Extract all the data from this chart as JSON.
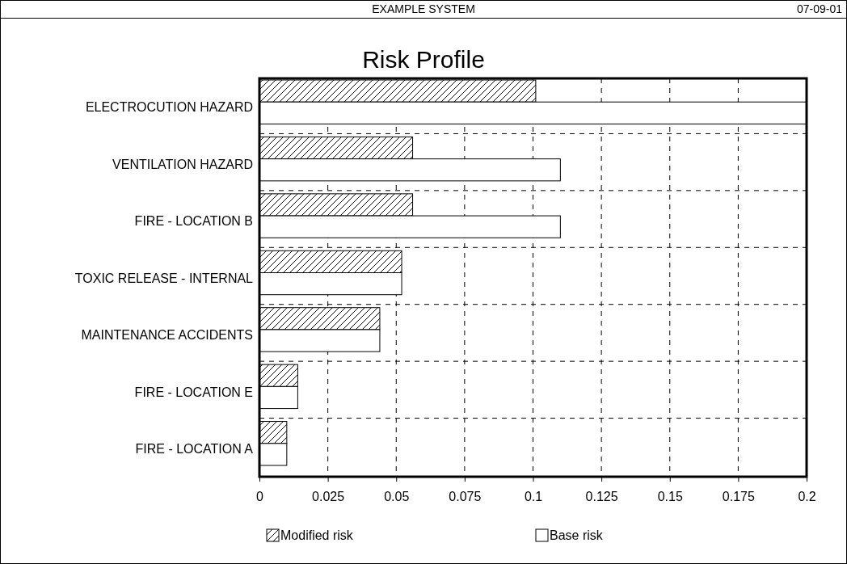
{
  "chart_data": {
    "type": "bar",
    "orientation": "horizontal",
    "title": "Risk Profile",
    "annotations": [
      "EXAMPLE SYSTEM",
      "07-09-01"
    ],
    "categories": [
      "ELECTROCUTION HAZARD",
      "VENTILATION HAZARD",
      "FIRE - LOCATION B",
      "TOXIC RELEASE - INTERNAL",
      "MAINTENANCE ACCIDENTS",
      "FIRE - LOCATION E",
      "FIRE - LOCATION A"
    ],
    "series": [
      {
        "name": "Modified risk",
        "color": "#000000",
        "values": [
          0.101,
          0.056,
          0.056,
          0.052,
          0.044,
          0.014,
          0.01
        ]
      },
      {
        "name": "Base risk",
        "color": "#ffffff",
        "values": [
          0.2,
          0.11,
          0.11,
          0.052,
          0.044,
          0.014,
          0.01
        ]
      }
    ],
    "xlim": [
      0,
      0.2
    ],
    "xticks": [
      0,
      0.025,
      0.05,
      0.075,
      0.1,
      0.125,
      0.15,
      0.175,
      0.2
    ],
    "grid": true,
    "legend": "bottom"
  }
}
